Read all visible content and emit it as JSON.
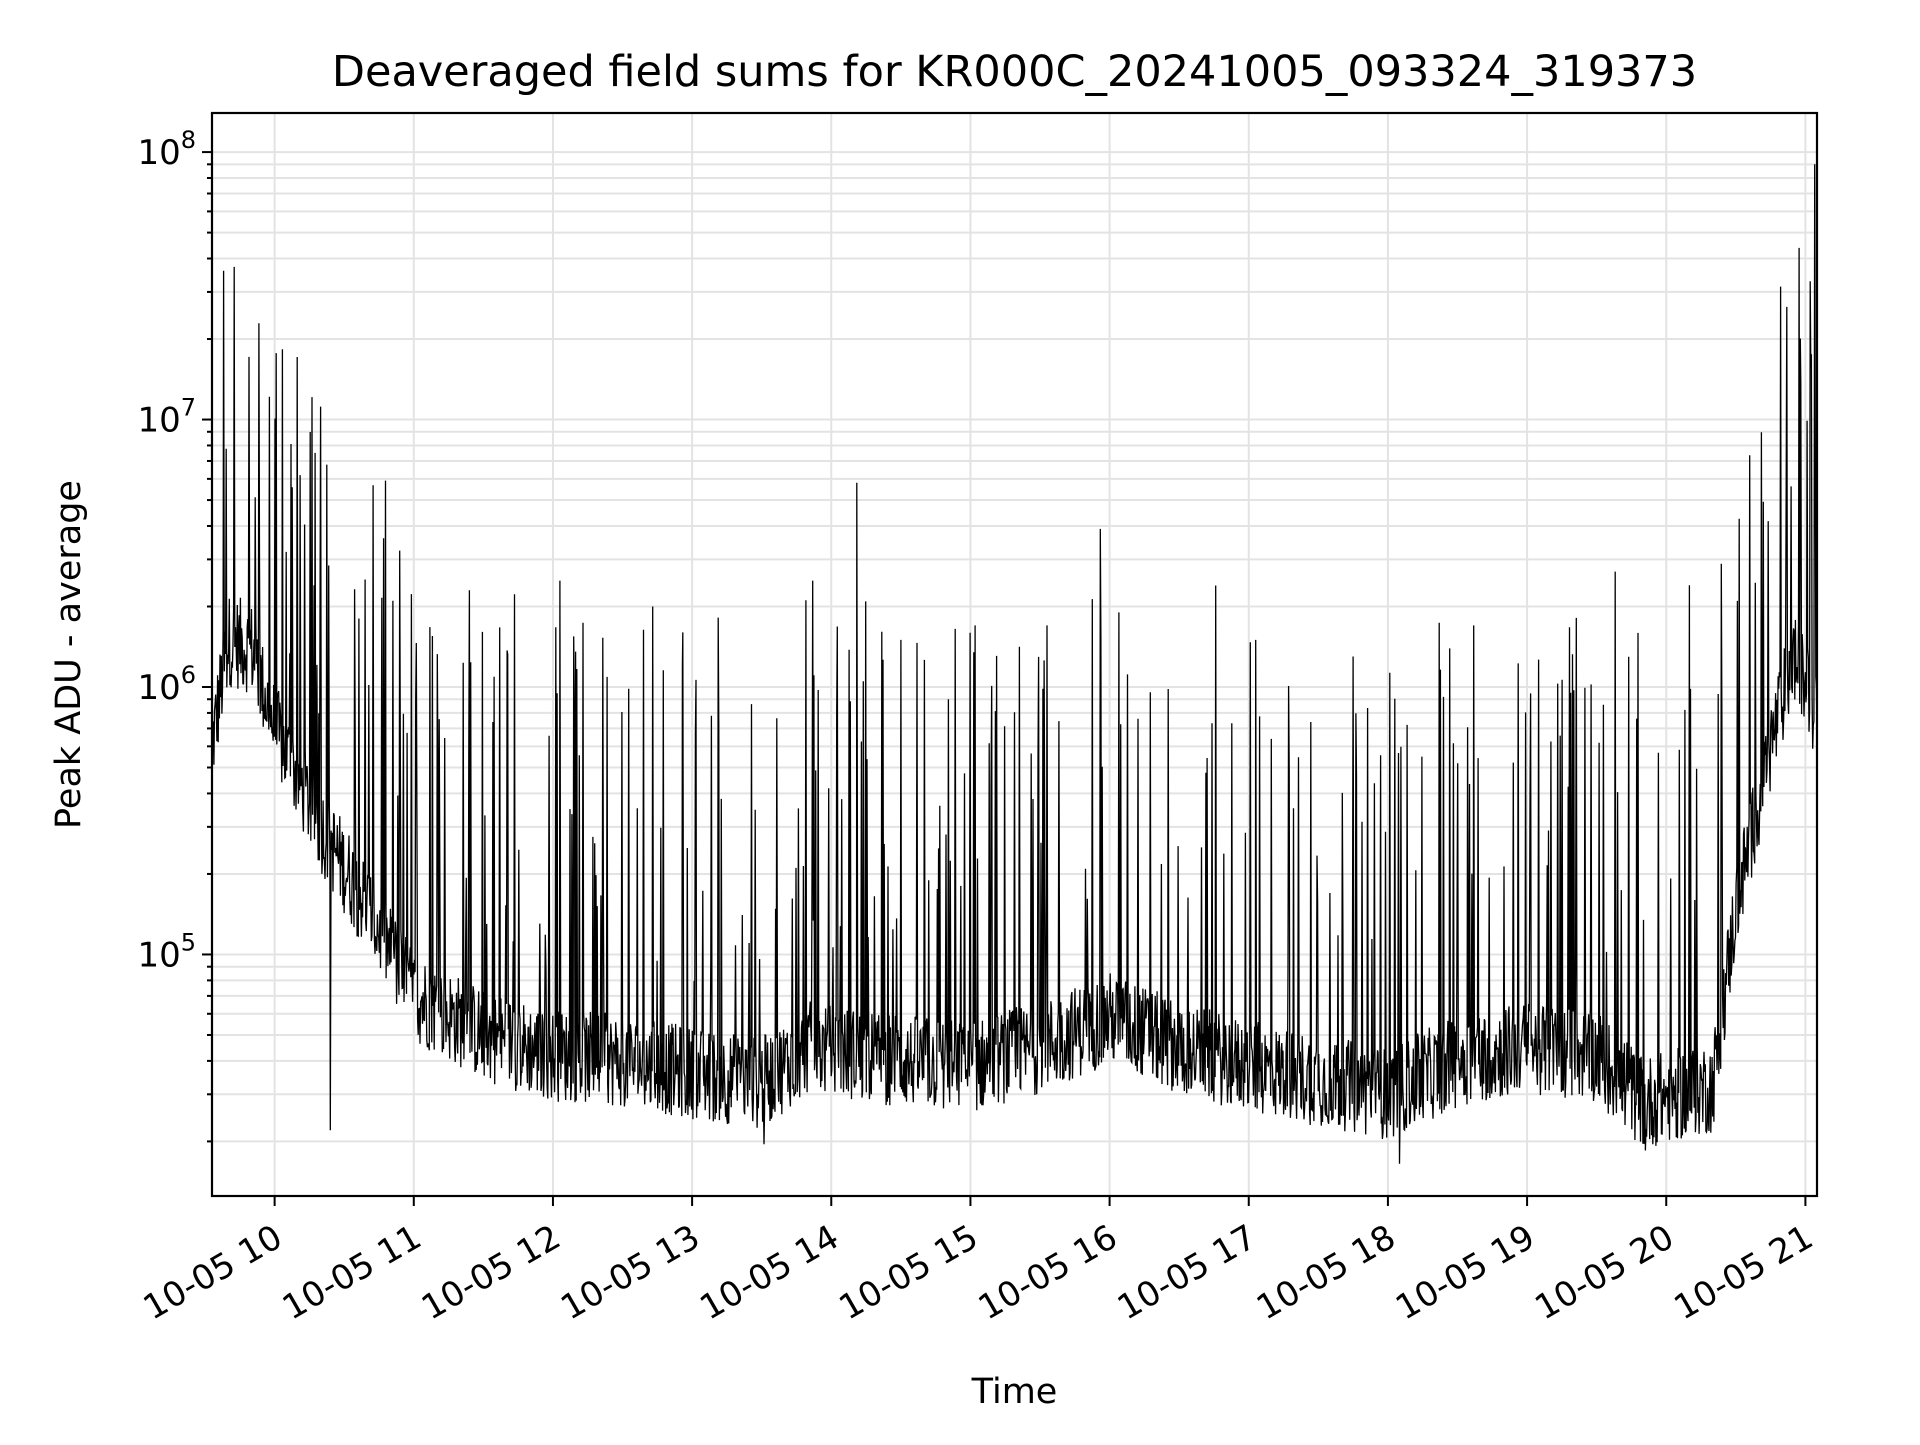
{
  "chart_data": {
    "type": "line",
    "title": "Deaveraged field sums for KR000C_20241005_093324_319373",
    "xlabel": "Time",
    "ylabel": "Peak ADU - average",
    "yscale": "log",
    "ylim": [
      12500,
      140000000
    ],
    "xlim": [
      "2024-10-05 09:33",
      "2024-10-05 21:05"
    ],
    "grid": true,
    "x_ticks": [
      "10-05 10",
      "10-05 11",
      "10-05 12",
      "10-05 13",
      "10-05 14",
      "10-05 15",
      "10-05 16",
      "10-05 17",
      "10-05 18",
      "10-05 19",
      "10-05 20",
      "10-05 21"
    ],
    "y_ticks": [
      {
        "base": "10",
        "exp": "5",
        "value": 100000
      },
      {
        "base": "10",
        "exp": "6",
        "value": 1000000
      },
      {
        "base": "10",
        "exp": "7",
        "value": 10000000
      },
      {
        "base": "10",
        "exp": "8",
        "value": 100000000
      }
    ],
    "series": [
      {
        "color": "#000000",
        "baseline": [
          [
            "2024-10-05 09:33",
            600000
          ],
          [
            "2024-10-05 09:40",
            1500000
          ],
          [
            "2024-10-05 09:50",
            1400000
          ],
          [
            "2024-10-05 10:00",
            700000
          ],
          [
            "2024-10-05 10:20",
            300000
          ],
          [
            "2024-10-05 10:40",
            150000
          ],
          [
            "2024-10-05 11:00",
            70000
          ],
          [
            "2024-10-05 11:30",
            50000
          ],
          [
            "2024-10-05 12:00",
            42000
          ],
          [
            "2024-10-05 12:30",
            40000
          ],
          [
            "2024-10-05 13:00",
            36000
          ],
          [
            "2024-10-05 13:30",
            33000
          ],
          [
            "2024-10-05 13:50",
            45000
          ],
          [
            "2024-10-05 14:30",
            40000
          ],
          [
            "2024-10-05 15:00",
            38000
          ],
          [
            "2024-10-05 15:30",
            45000
          ],
          [
            "2024-10-05 16:00",
            58000
          ],
          [
            "2024-10-05 16:30",
            45000
          ],
          [
            "2024-10-05 17:00",
            38000
          ],
          [
            "2024-10-05 17:30",
            34000
          ],
          [
            "2024-10-05 18:00",
            30000
          ],
          [
            "2024-10-05 18:30",
            40000
          ],
          [
            "2024-10-05 19:00",
            45000
          ],
          [
            "2024-10-05 19:30",
            42000
          ],
          [
            "2024-10-05 19:50",
            28000
          ],
          [
            "2024-10-05 20:20",
            32000
          ],
          [
            "2024-10-05 20:30",
            150000
          ],
          [
            "2024-10-05 20:45",
            600000
          ],
          [
            "2024-10-05 20:55",
            1300000
          ],
          [
            "2024-10-05 21:05",
            800000
          ]
        ],
        "peaks": [
          [
            "2024-10-05 09:38",
            36000000
          ],
          [
            "2024-10-05 10:05",
            3200000
          ],
          [
            "2024-10-05 10:11",
            6200000
          ],
          [
            "2024-10-05 10:17",
            2400000
          ],
          [
            "2024-10-05 10:24",
            22000
          ],
          [
            "2024-10-05 10:47",
            3600000
          ],
          [
            "2024-10-05 10:51",
            2100000
          ],
          [
            "2024-10-05 11:24",
            2300000
          ],
          [
            "2024-10-05 12:03",
            2500000
          ],
          [
            "2024-10-05 12:43",
            2000000
          ],
          [
            "2024-10-05 12:56",
            1600000
          ],
          [
            "2024-10-05 13:31",
            19500
          ],
          [
            "2024-10-05 13:52",
            2500000
          ],
          [
            "2024-10-05 14:11",
            5800000
          ],
          [
            "2024-10-05 14:30",
            1500000
          ],
          [
            "2024-10-05 15:02",
            1700000
          ],
          [
            "2024-10-05 15:33",
            1700000
          ],
          [
            "2024-10-05 15:56",
            3900000
          ],
          [
            "2024-10-05 16:04",
            1900000
          ],
          [
            "2024-10-05 17:03",
            1500000
          ],
          [
            "2024-10-05 17:45",
            1300000
          ],
          [
            "2024-10-05 18:05",
            16500
          ],
          [
            "2024-10-05 18:37",
            1700000
          ],
          [
            "2024-10-05 19:38",
            2700000
          ],
          [
            "2024-10-05 19:51",
            18500
          ],
          [
            "2024-10-05 20:10",
            2400000
          ],
          [
            "2024-10-05 20:58",
            13800000
          ],
          [
            "2024-10-05 21:04",
            90000000
          ]
        ]
      }
    ]
  }
}
